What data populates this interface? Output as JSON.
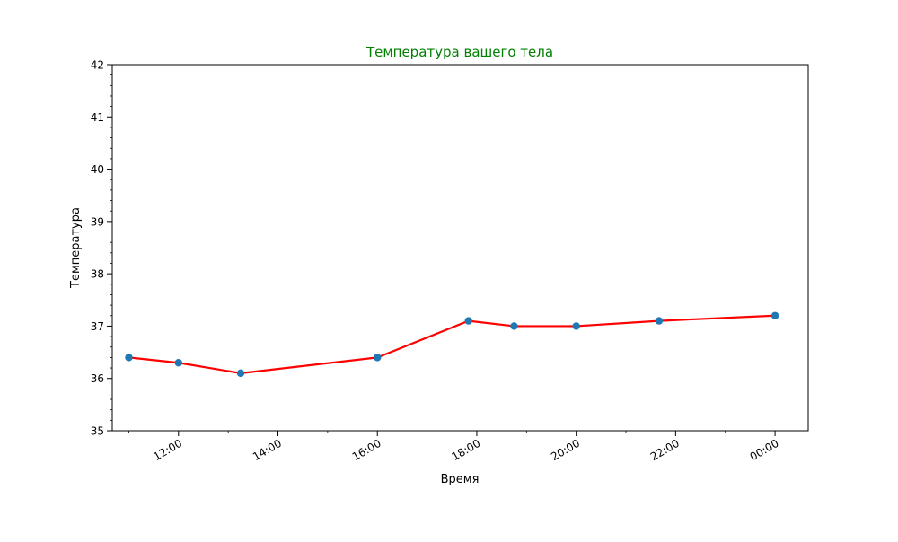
{
  "chart_data": {
    "type": "line",
    "title": "Температура вашего тела",
    "title_color": "#008000",
    "xlabel": "Время",
    "ylabel": "Температура",
    "ylim": [
      35,
      42
    ],
    "xlim": [
      "10:40",
      "00:40"
    ],
    "y_ticks": [
      "35",
      "36",
      "37",
      "38",
      "39",
      "40",
      "41",
      "42"
    ],
    "x_ticks": [
      "12:00",
      "14:00",
      "16:00",
      "18:00",
      "20:00",
      "22:00",
      "00:00"
    ],
    "grid": false,
    "series": [
      {
        "x": [
          "11:00",
          "12:00",
          "13:15",
          "16:00",
          "17:50",
          "18:45",
          "20:00",
          "21:40",
          "00:00"
        ],
        "y": [
          36.4,
          36.3,
          36.1,
          36.4,
          37.1,
          37.0,
          37.0,
          37.1,
          37.2
        ],
        "line_color": "#ff0000",
        "marker_color": "#1f77b4"
      }
    ]
  }
}
